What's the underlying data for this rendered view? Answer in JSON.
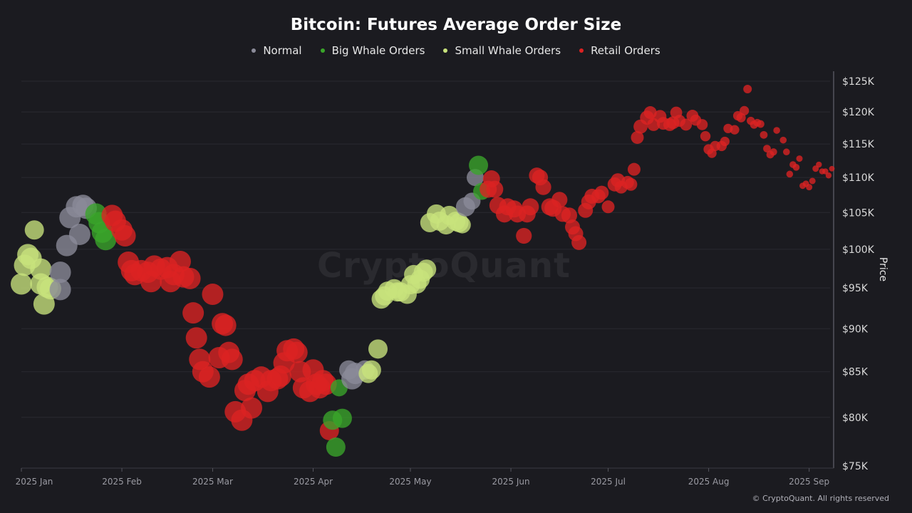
{
  "chart_data": {
    "type": "scatter",
    "title": "Bitcoin: Futures Average Order Size",
    "ylabel": "Price",
    "xlabel": "",
    "y_scale": "log",
    "ylim": [
      75000,
      125000
    ],
    "xlim": [
      "2025-01-01",
      "2025-09-08"
    ],
    "grid": "horizontal",
    "legend_position": "top",
    "yticks": [
      {
        "value": 125000,
        "label": "$125K"
      },
      {
        "value": 120000,
        "label": "$120K"
      },
      {
        "value": 115000,
        "label": "$115K"
      },
      {
        "value": 110000,
        "label": "$110K"
      },
      {
        "value": 105000,
        "label": "$105K"
      },
      {
        "value": 100000,
        "label": "$100K"
      },
      {
        "value": 95000,
        "label": "$95K"
      },
      {
        "value": 90000,
        "label": "$90K"
      },
      {
        "value": 85000,
        "label": "$85K"
      },
      {
        "value": 80000,
        "label": "$80K"
      },
      {
        "value": 75000,
        "label": "$75K"
      }
    ],
    "xticks": [
      {
        "date": "2025-01-01",
        "label": "2025 Jan"
      },
      {
        "date": "2025-02-01",
        "label": "2025 Feb"
      },
      {
        "date": "2025-03-01",
        "label": "2025 Mar"
      },
      {
        "date": "2025-04-01",
        "label": "2025 Apr"
      },
      {
        "date": "2025-05-01",
        "label": "2025 May"
      },
      {
        "date": "2025-06-01",
        "label": "2025 Jun"
      },
      {
        "date": "2025-07-01",
        "label": "2025 Jul"
      },
      {
        "date": "2025-08-01",
        "label": "2025 Aug"
      },
      {
        "date": "2025-09-01",
        "label": "2025 Sep"
      }
    ],
    "series": [
      {
        "key": "N",
        "name": "Normal",
        "color": "#8b8b99"
      },
      {
        "key": "G",
        "name": "Big Whale Orders",
        "color": "#3aa52a"
      },
      {
        "key": "S",
        "name": "Small Whale Orders",
        "color": "#c8e37c"
      },
      {
        "key": "R",
        "name": "Retail Orders",
        "color": "#dd2222"
      }
    ],
    "points": [
      [
        "2025-01-01",
        95500,
        "S",
        5
      ],
      [
        "2025-01-02",
        97900,
        "S",
        5
      ],
      [
        "2025-01-03",
        99300,
        "S",
        5
      ],
      [
        "2025-01-04",
        98800,
        "S",
        5
      ],
      [
        "2025-01-05",
        102600,
        "S",
        4.5
      ],
      [
        "2025-01-07",
        97400,
        "S",
        5
      ],
      [
        "2025-01-07",
        95500,
        "S",
        5
      ],
      [
        "2025-01-08",
        93000,
        "S",
        5
      ],
      [
        "2025-01-09",
        95100,
        "S",
        5
      ],
      [
        "2025-01-10",
        94900,
        "S",
        5
      ],
      [
        "2025-01-13",
        94800,
        "N",
        5
      ],
      [
        "2025-01-13",
        97000,
        "N",
        5
      ],
      [
        "2025-01-15",
        100500,
        "N",
        5
      ],
      [
        "2025-01-16",
        104300,
        "N",
        5
      ],
      [
        "2025-01-18",
        105800,
        "N",
        5
      ],
      [
        "2025-01-19",
        102000,
        "N",
        5
      ],
      [
        "2025-01-20",
        106000,
        "N",
        5
      ],
      [
        "2025-01-21",
        105600,
        "N",
        5
      ],
      [
        "2025-01-24",
        104800,
        "G",
        5
      ],
      [
        "2025-01-25",
        103600,
        "G",
        5
      ],
      [
        "2025-01-26",
        102300,
        "G",
        5
      ],
      [
        "2025-01-27",
        101300,
        "G",
        5
      ],
      [
        "2025-01-29",
        104600,
        "R",
        5
      ],
      [
        "2025-01-30",
        103800,
        "R",
        5
      ],
      [
        "2025-02-01",
        102600,
        "R",
        5
      ],
      [
        "2025-02-02",
        101800,
        "R",
        5
      ],
      [
        "2025-02-03",
        98300,
        "R",
        5
      ],
      [
        "2025-02-04",
        97200,
        "R",
        5
      ],
      [
        "2025-02-05",
        96700,
        "R",
        5
      ],
      [
        "2025-02-07",
        97200,
        "R",
        5
      ],
      [
        "2025-02-09",
        97000,
        "R",
        5
      ],
      [
        "2025-02-10",
        95800,
        "R",
        5
      ],
      [
        "2025-02-11",
        97800,
        "R",
        5
      ],
      [
        "2025-02-13",
        97400,
        "R",
        5
      ],
      [
        "2025-02-15",
        97600,
        "R",
        5
      ],
      [
        "2025-02-16",
        95800,
        "R",
        5
      ],
      [
        "2025-02-17",
        96700,
        "R",
        5
      ],
      [
        "2025-02-19",
        98400,
        "R",
        5
      ],
      [
        "2025-02-20",
        96400,
        "R",
        5
      ],
      [
        "2025-02-22",
        96200,
        "R",
        5
      ],
      [
        "2025-02-23",
        91900,
        "R",
        5
      ],
      [
        "2025-02-24",
        88900,
        "R",
        5
      ],
      [
        "2025-02-25",
        86400,
        "R",
        5
      ],
      [
        "2025-02-26",
        85000,
        "R",
        5
      ],
      [
        "2025-02-28",
        84400,
        "R",
        5
      ],
      [
        "2025-03-01",
        94200,
        "R",
        5
      ],
      [
        "2025-03-03",
        86600,
        "R",
        5
      ],
      [
        "2025-03-04",
        90600,
        "R",
        5
      ],
      [
        "2025-03-05",
        90400,
        "R",
        5
      ],
      [
        "2025-03-06",
        87200,
        "R",
        5
      ],
      [
        "2025-03-07",
        86400,
        "R",
        5
      ],
      [
        "2025-03-08",
        80600,
        "R",
        5
      ],
      [
        "2025-03-10",
        79700,
        "R",
        5
      ],
      [
        "2025-03-11",
        82900,
        "R",
        5
      ],
      [
        "2025-03-12",
        83600,
        "R",
        5
      ],
      [
        "2025-03-13",
        81000,
        "R",
        5
      ],
      [
        "2025-03-14",
        84000,
        "R",
        5
      ],
      [
        "2025-03-16",
        84400,
        "R",
        5
      ],
      [
        "2025-03-18",
        82800,
        "R",
        5
      ],
      [
        "2025-03-19",
        84000,
        "R",
        5
      ],
      [
        "2025-03-21",
        84200,
        "R",
        5
      ],
      [
        "2025-03-22",
        84500,
        "R",
        5
      ],
      [
        "2025-03-23",
        86000,
        "R",
        5
      ],
      [
        "2025-03-24",
        87400,
        "R",
        5
      ],
      [
        "2025-03-26",
        87600,
        "R",
        5
      ],
      [
        "2025-03-27",
        87200,
        "R",
        5
      ],
      [
        "2025-03-28",
        85000,
        "R",
        5
      ],
      [
        "2025-03-29",
        83200,
        "R",
        5
      ],
      [
        "2025-03-31",
        82800,
        "R",
        5
      ],
      [
        "2025-04-01",
        85200,
        "R",
        5
      ],
      [
        "2025-04-02",
        83600,
        "R",
        5
      ],
      [
        "2025-04-03",
        83200,
        "R",
        5
      ],
      [
        "2025-04-04",
        84000,
        "R",
        5
      ],
      [
        "2025-04-05",
        83600,
        "R",
        5
      ],
      [
        "2025-04-06",
        78600,
        "R",
        4.5
      ],
      [
        "2025-04-07",
        79700,
        "G",
        4.5
      ],
      [
        "2025-04-08",
        76900,
        "G",
        4.5
      ],
      [
        "2025-04-09",
        83200,
        "G",
        4
      ],
      [
        "2025-04-10",
        79900,
        "G",
        4.5
      ],
      [
        "2025-04-12",
        85200,
        "N",
        4.5
      ],
      [
        "2025-04-13",
        84200,
        "N",
        5
      ],
      [
        "2025-04-14",
        84800,
        "N",
        5
      ],
      [
        "2025-04-17",
        85200,
        "N",
        4.5
      ],
      [
        "2025-04-18",
        84800,
        "S",
        4.5
      ],
      [
        "2025-04-19",
        85200,
        "S",
        4.5
      ],
      [
        "2025-04-21",
        87600,
        "S",
        4.5
      ],
      [
        "2025-04-22",
        93600,
        "S",
        4.5
      ],
      [
        "2025-04-23",
        94000,
        "S",
        4.5
      ],
      [
        "2025-04-24",
        94600,
        "S",
        4.5
      ],
      [
        "2025-04-26",
        94900,
        "S",
        4.5
      ],
      [
        "2025-04-27",
        94500,
        "S",
        4.5
      ],
      [
        "2025-04-28",
        94500,
        "S",
        4.5
      ],
      [
        "2025-04-30",
        94200,
        "S",
        4.5
      ],
      [
        "2025-05-01",
        95400,
        "S",
        4.5
      ],
      [
        "2025-05-02",
        96700,
        "S",
        4.5
      ],
      [
        "2025-05-03",
        95500,
        "S",
        4.5
      ],
      [
        "2025-05-04",
        96100,
        "S",
        4.5
      ],
      [
        "2025-05-05",
        97000,
        "S",
        4.5
      ],
      [
        "2025-05-06",
        97400,
        "S",
        4.5
      ],
      [
        "2025-05-07",
        103600,
        "S",
        4.5
      ],
      [
        "2025-05-09",
        104800,
        "S",
        4.5
      ],
      [
        "2025-05-10",
        103800,
        "S",
        4.5
      ],
      [
        "2025-05-12",
        103300,
        "S",
        4.5
      ],
      [
        "2025-05-13",
        104600,
        "S",
        4.5
      ],
      [
        "2025-05-15",
        103800,
        "S",
        4.5
      ],
      [
        "2025-05-16",
        103600,
        "S",
        4.5
      ],
      [
        "2025-05-17",
        103300,
        "S",
        4
      ],
      [
        "2025-05-18",
        105800,
        "N",
        4.5
      ],
      [
        "2025-05-20",
        106600,
        "N",
        4
      ],
      [
        "2025-05-21",
        110000,
        "N",
        4
      ],
      [
        "2025-05-22",
        111800,
        "G",
        4.5
      ],
      [
        "2025-05-23",
        108000,
        "G",
        4
      ],
      [
        "2025-05-25",
        108300,
        "R",
        4
      ],
      [
        "2025-05-26",
        109800,
        "R",
        4
      ],
      [
        "2025-05-27",
        108300,
        "R",
        4
      ],
      [
        "2025-05-28",
        106000,
        "R",
        4
      ],
      [
        "2025-05-30",
        104800,
        "R",
        4
      ],
      [
        "2025-05-31",
        105800,
        "R",
        4
      ],
      [
        "2025-06-02",
        105500,
        "R",
        4
      ],
      [
        "2025-06-03",
        104800,
        "R",
        4
      ],
      [
        "2025-06-05",
        101800,
        "R",
        3.7
      ],
      [
        "2025-06-06",
        104800,
        "R",
        4
      ],
      [
        "2025-06-07",
        105800,
        "R",
        4
      ],
      [
        "2025-06-09",
        110300,
        "R",
        3.7
      ],
      [
        "2025-06-10",
        110000,
        "R",
        3.7
      ],
      [
        "2025-06-11",
        108600,
        "R",
        3.7
      ],
      [
        "2025-06-13",
        105800,
        "R",
        4
      ],
      [
        "2025-06-14",
        105600,
        "R",
        4
      ],
      [
        "2025-06-16",
        106800,
        "R",
        3.7
      ],
      [
        "2025-06-17",
        104800,
        "R",
        3.7
      ],
      [
        "2025-06-19",
        104600,
        "R",
        3.7
      ],
      [
        "2025-06-20",
        103000,
        "R",
        3.5
      ],
      [
        "2025-06-21",
        102100,
        "R",
        3.5
      ],
      [
        "2025-06-22",
        100900,
        "R",
        3.5
      ],
      [
        "2025-06-24",
        105300,
        "R",
        3.5
      ],
      [
        "2025-06-25",
        106500,
        "R",
        3.5
      ],
      [
        "2025-06-26",
        107300,
        "R",
        3.5
      ],
      [
        "2025-06-28",
        107300,
        "R",
        3.3
      ],
      [
        "2025-06-29",
        107800,
        "R",
        3.3
      ],
      [
        "2025-07-01",
        105800,
        "R",
        3
      ],
      [
        "2025-07-03",
        109000,
        "R",
        3.3
      ],
      [
        "2025-07-04",
        109600,
        "R",
        3.3
      ],
      [
        "2025-07-05",
        108600,
        "R",
        3
      ],
      [
        "2025-07-07",
        109300,
        "R",
        3
      ],
      [
        "2025-07-08",
        109000,
        "R",
        3
      ],
      [
        "2025-07-09",
        111200,
        "R",
        3
      ],
      [
        "2025-07-10",
        116000,
        "R",
        3
      ],
      [
        "2025-07-11",
        117700,
        "R",
        3.3
      ],
      [
        "2025-07-13",
        119100,
        "R",
        3.3
      ],
      [
        "2025-07-14",
        119900,
        "R",
        3
      ],
      [
        "2025-07-15",
        118000,
        "R",
        3
      ],
      [
        "2025-07-17",
        119300,
        "R",
        3
      ],
      [
        "2025-07-18",
        118200,
        "R",
        3
      ],
      [
        "2025-07-20",
        118000,
        "R",
        3
      ],
      [
        "2025-07-21",
        118300,
        "R",
        3
      ],
      [
        "2025-07-22",
        119900,
        "R",
        2.8
      ],
      [
        "2025-07-23",
        118600,
        "R",
        2.8
      ],
      [
        "2025-07-25",
        118000,
        "R",
        2.8
      ],
      [
        "2025-07-27",
        119400,
        "R",
        2.8
      ],
      [
        "2025-07-28",
        118700,
        "R",
        2.6
      ],
      [
        "2025-07-30",
        118000,
        "R",
        2.6
      ],
      [
        "2025-07-31",
        116200,
        "R",
        2.4
      ],
      [
        "2025-08-01",
        114200,
        "R",
        2.4
      ],
      [
        "2025-08-02",
        113600,
        "R",
        2.2
      ],
      [
        "2025-08-03",
        114700,
        "R",
        2.4
      ],
      [
        "2025-08-05",
        114700,
        "R",
        2.4
      ],
      [
        "2025-08-06",
        115400,
        "R",
        2.2
      ],
      [
        "2025-08-07",
        117400,
        "R",
        2.2
      ],
      [
        "2025-08-09",
        117200,
        "R",
        2.2
      ],
      [
        "2025-08-10",
        119400,
        "R",
        2.2
      ],
      [
        "2025-08-11",
        119100,
        "R",
        2.2
      ],
      [
        "2025-08-12",
        120200,
        "R",
        2.2
      ],
      [
        "2025-08-13",
        123700,
        "R",
        2
      ],
      [
        "2025-08-14",
        118600,
        "R",
        1.9
      ],
      [
        "2025-08-15",
        118000,
        "R",
        1.9
      ],
      [
        "2025-08-16",
        118300,
        "R",
        1.8
      ],
      [
        "2025-08-17",
        118100,
        "R",
        1.8
      ],
      [
        "2025-08-18",
        116400,
        "R",
        1.8
      ],
      [
        "2025-08-19",
        114300,
        "R",
        1.8
      ],
      [
        "2025-08-20",
        113400,
        "R",
        1.8
      ],
      [
        "2025-08-21",
        113800,
        "R",
        1.7
      ],
      [
        "2025-08-22",
        117100,
        "R",
        1.6
      ],
      [
        "2025-08-24",
        115600,
        "R",
        1.6
      ],
      [
        "2025-08-25",
        113800,
        "R",
        1.6
      ],
      [
        "2025-08-26",
        110500,
        "R",
        1.6
      ],
      [
        "2025-08-27",
        111900,
        "R",
        1.6
      ],
      [
        "2025-08-28",
        111500,
        "R",
        1.6
      ],
      [
        "2025-08-29",
        112800,
        "R",
        1.5
      ],
      [
        "2025-08-30",
        108800,
        "R",
        1.5
      ],
      [
        "2025-08-31",
        109100,
        "R",
        1.5
      ],
      [
        "2025-09-01",
        108600,
        "R",
        1.5
      ],
      [
        "2025-09-02",
        109500,
        "R",
        1.5
      ],
      [
        "2025-09-03",
        111300,
        "R",
        1.5
      ],
      [
        "2025-09-04",
        111900,
        "R",
        1.4
      ],
      [
        "2025-09-05",
        110900,
        "R",
        1.4
      ],
      [
        "2025-09-06",
        110900,
        "R",
        1.4
      ],
      [
        "2025-09-07",
        110300,
        "R",
        1.4
      ],
      [
        "2025-09-08",
        111300,
        "R",
        1.3
      ]
    ]
  },
  "watermark": "CryptoQuant",
  "copyright": "© CryptoQuant. All rights reserved"
}
